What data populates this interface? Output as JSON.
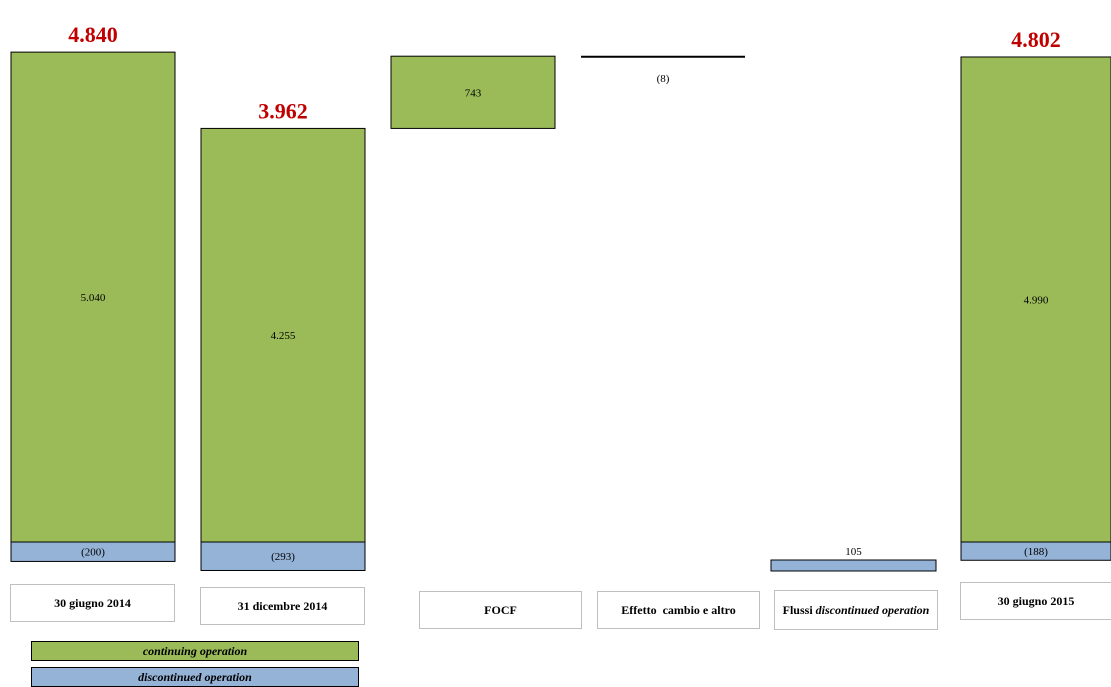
{
  "colors": {
    "continuing": "#9bbb59",
    "discontinued": "#95b3d7",
    "total": "#c00000"
  },
  "chart_data": {
    "type": "bar",
    "categories": [
      "30 giugno 2014",
      "31 dicembre 2014",
      "FOCF",
      "Effetto  cambio e altro",
      "Flussi discontinued operation",
      "30 giugno 2015"
    ],
    "bars": [
      {
        "category": "30 giugno 2014",
        "continuing": 5040,
        "continuing_label": "5.040",
        "discontinued": -200,
        "discontinued_label": "(200)",
        "total": 4840,
        "total_label": "4.840"
      },
      {
        "category": "31 dicembre 2014",
        "continuing": 4255,
        "continuing_label": "4.255",
        "discontinued": -293,
        "discontinued_label": "(293)",
        "total": 3962,
        "total_label": "3.962"
      },
      {
        "category": "FOCF",
        "change": 743,
        "change_label": "743"
      },
      {
        "category": "Effetto  cambio e altro",
        "change": -8,
        "change_label": "(8)"
      },
      {
        "category": "Flussi discontinued operation",
        "change": 105,
        "change_label": "105"
      },
      {
        "category": "30 giugno 2015",
        "continuing": 4990,
        "continuing_label": "4.990",
        "discontinued": -188,
        "discontinued_label": "(188)",
        "total": 4802,
        "total_label": "4.802"
      }
    ],
    "legend": [
      {
        "name": "continuing operation",
        "color": "#9bbb59"
      },
      {
        "name": "discontinued operation",
        "color": "#95b3d7"
      }
    ]
  },
  "categories_display": {
    "c1": "30 giugno 2014",
    "c2": "31 dicembre 2014",
    "c3": "FOCF",
    "c4": "Effetto  cambio e altro",
    "c5_prefix": "Flussi ",
    "c5_italic": "discontinued operation",
    "c6": "30 giugno 2015"
  },
  "legend": {
    "continuing": "continuing operation",
    "discontinued": "discontinued operation"
  }
}
